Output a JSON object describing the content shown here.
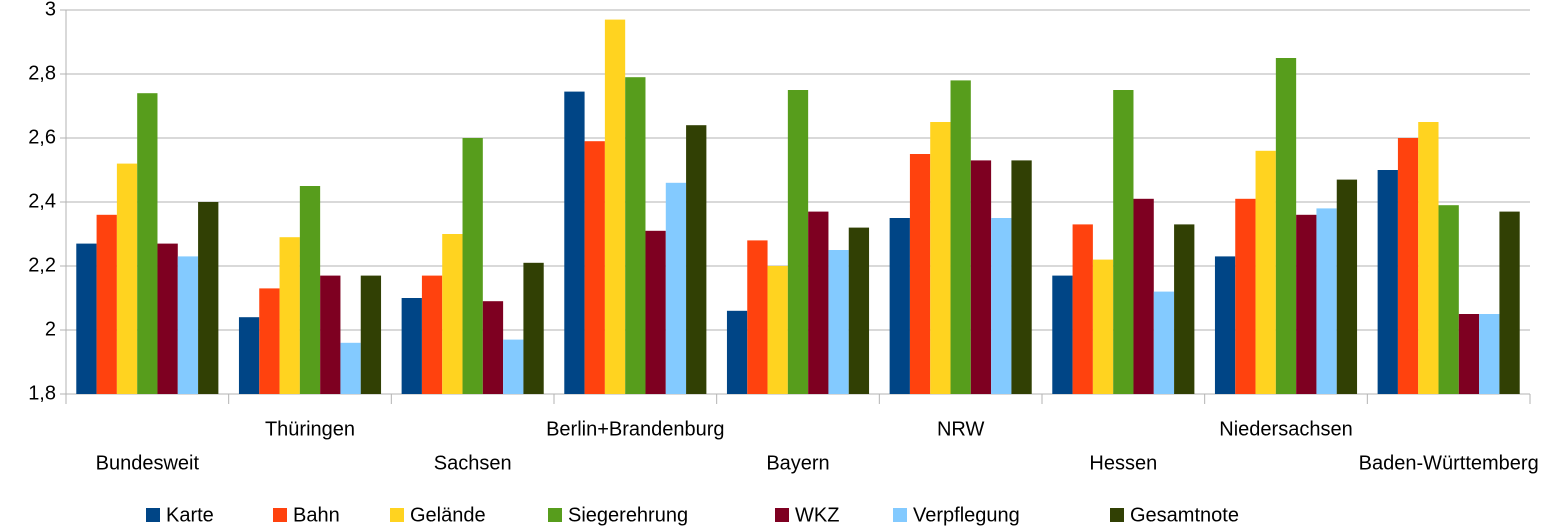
{
  "chart_data": {
    "type": "bar",
    "categories": [
      "Bundesweit",
      "Thüringen",
      "Sachsen",
      "Berlin+Brandenburg",
      "Bayern",
      "NRW",
      "Hessen",
      "Niedersachsen",
      "Baden-Württemberg"
    ],
    "series": [
      {
        "name": "Karte",
        "color": "#004586",
        "values": [
          2.27,
          2.04,
          2.1,
          2.745,
          2.06,
          2.35,
          2.17,
          2.23,
          2.5
        ]
      },
      {
        "name": "Bahn",
        "color": "#ff420e",
        "values": [
          2.36,
          2.13,
          2.17,
          2.59,
          2.28,
          2.55,
          2.33,
          2.41,
          2.6
        ]
      },
      {
        "name": "Gelände",
        "color": "#ffd320",
        "values": [
          2.52,
          2.29,
          2.3,
          2.97,
          2.2,
          2.65,
          2.22,
          2.56,
          2.65
        ]
      },
      {
        "name": "Siegerehrung",
        "color": "#579d1c",
        "values": [
          2.74,
          2.45,
          2.6,
          2.79,
          2.75,
          2.78,
          2.75,
          2.85,
          2.39
        ]
      },
      {
        "name": "WKZ",
        "color": "#7e0021",
        "values": [
          2.27,
          2.17,
          2.09,
          2.31,
          2.37,
          2.53,
          2.41,
          2.36,
          2.05
        ]
      },
      {
        "name": "Verpflegung",
        "color": "#83caff",
        "values": [
          2.23,
          1.96,
          1.97,
          2.46,
          2.25,
          2.35,
          2.12,
          2.38,
          2.05
        ]
      },
      {
        "name": "Gesamtnote",
        "color": "#314004",
        "values": [
          2.4,
          2.17,
          2.21,
          2.64,
          2.32,
          2.53,
          2.33,
          2.47,
          2.37
        ]
      }
    ],
    "ylim": [
      1.8,
      3
    ],
    "yticks": [
      {
        "value": 1.8,
        "label": "1,8"
      },
      2,
      {
        "value": 2.2,
        "label": "2,2"
      },
      {
        "value": 2.4,
        "label": "2,4"
      },
      {
        "value": 2.6,
        "label": "2,6"
      },
      {
        "value": 2.8,
        "label": "2,8"
      },
      3
    ],
    "grid": true,
    "legend": "bottom"
  }
}
